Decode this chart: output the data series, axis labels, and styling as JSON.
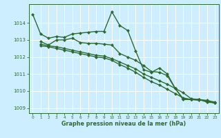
{
  "xlabel": "Graphe pression niveau de la mer (hPa)",
  "bg_color": "#cceeff",
  "grid_color": "#ffffff",
  "line_color": "#2d6a2d",
  "xlim": [
    -0.5,
    23.5
  ],
  "ylim": [
    1008.7,
    1015.1
  ],
  "yticks": [
    1009,
    1010,
    1011,
    1012,
    1013,
    1014
  ],
  "xticks": [
    0,
    1,
    2,
    3,
    4,
    5,
    6,
    7,
    8,
    9,
    10,
    11,
    12,
    13,
    14,
    15,
    16,
    17,
    18,
    19,
    20,
    21,
    22,
    23
  ],
  "series": [
    {
      "x": [
        0,
        1,
        2,
        3,
        4,
        5,
        6,
        7,
        8,
        9,
        10,
        11,
        12,
        13,
        14,
        15,
        16,
        17,
        18,
        19,
        20,
        21
      ],
      "y": [
        1014.5,
        1013.35,
        1013.1,
        1013.2,
        1013.15,
        1013.35,
        1013.4,
        1013.45,
        1013.5,
        1013.5,
        1014.65,
        1013.85,
        1013.55,
        1012.35,
        1011.25,
        1011.1,
        1011.35,
        1011.0,
        1010.15,
        1009.55,
        1009.5,
        1009.45
      ]
    },
    {
      "x": [
        1,
        2,
        3,
        4,
        5,
        6,
        7,
        8,
        9,
        10,
        11,
        12,
        13,
        14,
        15,
        16,
        17,
        18,
        19,
        20,
        21,
        22,
        23
      ],
      "y": [
        1012.9,
        1012.7,
        1013.0,
        1013.0,
        1013.1,
        1012.85,
        1012.8,
        1012.8,
        1012.75,
        1012.7,
        1012.2,
        1012.0,
        1011.8,
        1011.5,
        1011.15,
        1011.1,
        1010.9,
        1010.15,
        1009.5,
        1009.5,
        1009.5,
        1009.35,
        1009.3
      ]
    },
    {
      "x": [
        1,
        2,
        3,
        4,
        5,
        6,
        7,
        8,
        9,
        10,
        11,
        12,
        13,
        14,
        15,
        16,
        17,
        18,
        19,
        20,
        21,
        22,
        23
      ],
      "y": [
        1012.75,
        1012.65,
        1012.6,
        1012.5,
        1012.4,
        1012.3,
        1012.2,
        1012.1,
        1012.05,
        1011.9,
        1011.7,
        1011.5,
        1011.3,
        1011.0,
        1010.8,
        1010.6,
        1010.4,
        1010.15,
        1009.9,
        1009.55,
        1009.5,
        1009.45,
        1009.35
      ]
    },
    {
      "x": [
        1,
        2,
        3,
        4,
        5,
        6,
        7,
        8,
        9,
        10,
        11,
        12,
        13,
        14,
        15,
        16,
        17,
        18,
        19,
        20,
        21,
        22,
        23
      ],
      "y": [
        1012.65,
        1012.6,
        1012.5,
        1012.4,
        1012.3,
        1012.2,
        1012.1,
        1012.0,
        1011.95,
        1011.8,
        1011.55,
        1011.35,
        1011.1,
        1010.8,
        1010.55,
        1010.35,
        1010.1,
        1009.85,
        1009.6,
        1009.5,
        1009.5,
        1009.4,
        1009.3
      ]
    }
  ]
}
